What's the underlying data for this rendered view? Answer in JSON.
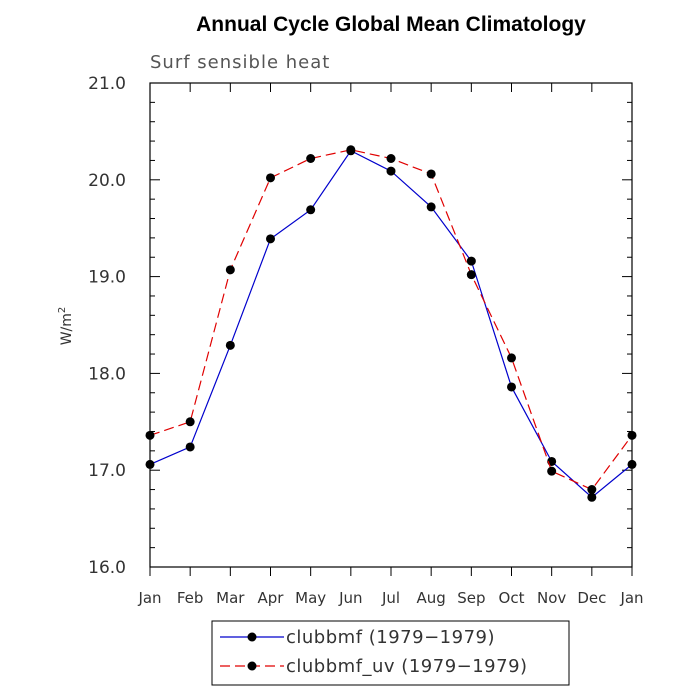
{
  "chart_data": {
    "type": "line",
    "title": "Annual Cycle Global Mean Climatology",
    "subtitle": "Surf sensible heat",
    "ylabel": "W/m",
    "ylabel_superscript": "2",
    "xlabel": "",
    "categories": [
      "Jan",
      "Feb",
      "Mar",
      "Apr",
      "May",
      "Jun",
      "Jul",
      "Aug",
      "Sep",
      "Oct",
      "Nov",
      "Dec",
      "Jan"
    ],
    "ylim": [
      16.0,
      21.0
    ],
    "yticks": [
      "16.0",
      "17.0",
      "18.0",
      "19.0",
      "20.0",
      "21.0"
    ],
    "grid": false,
    "legend_position": "bottom-center",
    "series": [
      {
        "name": "clubbmf (1979−1979)",
        "color": "#0000cc",
        "dash": "solid",
        "values": [
          17.06,
          17.24,
          18.29,
          19.39,
          19.69,
          20.3,
          20.09,
          19.72,
          19.16,
          17.86,
          17.09,
          16.72,
          17.06
        ]
      },
      {
        "name": "clubbmf_uv (1979−1979)",
        "color": "#e00000",
        "dash": "dashed",
        "values": [
          17.36,
          17.5,
          19.07,
          20.02,
          20.22,
          20.31,
          20.22,
          20.06,
          19.02,
          18.16,
          16.99,
          16.8,
          17.36
        ]
      }
    ]
  }
}
